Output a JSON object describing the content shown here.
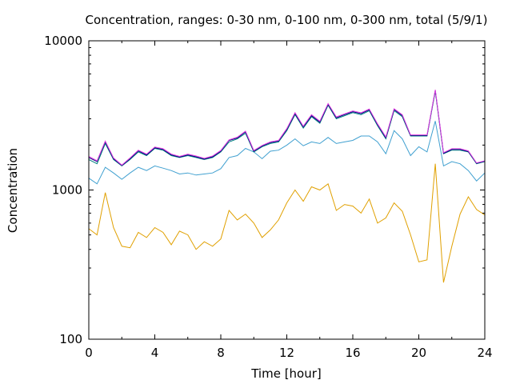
{
  "chart_data": {
    "type": "line",
    "title": "Concentration, ranges: 0-30 nm, 0-100 nm, 0-300 nm, total (5/9/1)",
    "xlabel": "Time [hour]",
    "ylabel": "Concentration",
    "xlim": [
      0,
      24
    ],
    "ylim": [
      100,
      10000
    ],
    "yscale": "log",
    "x_ticks": [
      "0",
      "4",
      "8",
      "12",
      "16",
      "20",
      "24"
    ],
    "y_ticks": [
      "100",
      "1000",
      "10000"
    ],
    "x_tick_values": [
      0,
      4,
      8,
      12,
      16,
      20,
      24
    ],
    "y_tick_values": [
      100,
      1000,
      10000
    ],
    "grid": false,
    "x": [
      0,
      0.5,
      1,
      1.5,
      2,
      2.5,
      3,
      3.5,
      4,
      4.5,
      5,
      5.5,
      6,
      6.5,
      7,
      7.5,
      8,
      8.5,
      9,
      9.5,
      10,
      10.5,
      11,
      11.5,
      12,
      12.5,
      13,
      13.5,
      14,
      14.5,
      15,
      15.5,
      16,
      16.5,
      17,
      17.5,
      18,
      18.5,
      19,
      19.5,
      20,
      20.5,
      21,
      21.5,
      22,
      22.5,
      23,
      23.5,
      24
    ],
    "series": [
      {
        "color": "#e0a000",
        "values": [
          550,
          500,
          960,
          560,
          420,
          410,
          520,
          480,
          560,
          520,
          430,
          530,
          500,
          400,
          450,
          420,
          470,
          730,
          630,
          690,
          600,
          480,
          540,
          630,
          820,
          1000,
          840,
          1050,
          1000,
          1100,
          730,
          800,
          780,
          700,
          870,
          600,
          650,
          820,
          720,
          500,
          330,
          340,
          1500,
          240,
          420,
          690,
          900,
          740,
          680
        ]
      },
      {
        "color": "#40a0d0",
        "values": [
          1200,
          1100,
          1420,
          1300,
          1180,
          1300,
          1420,
          1350,
          1450,
          1400,
          1350,
          1280,
          1300,
          1260,
          1280,
          1300,
          1390,
          1650,
          1700,
          1900,
          1800,
          1620,
          1820,
          1850,
          2000,
          2200,
          1980,
          2100,
          2050,
          2250,
          2050,
          2100,
          2150,
          2300,
          2300,
          2100,
          1750,
          2500,
          2200,
          1700,
          1950,
          1800,
          2900,
          1450,
          1550,
          1500,
          1350,
          1150,
          1300
        ]
      },
      {
        "color": "#008080",
        "values": [
          1600,
          1500,
          2050,
          1600,
          1450,
          1600,
          1800,
          1700,
          1900,
          1850,
          1700,
          1650,
          1700,
          1650,
          1600,
          1650,
          1800,
          2100,
          2200,
          2400,
          1800,
          1950,
          2050,
          2100,
          2500,
          3200,
          2600,
          3100,
          2800,
          3700,
          3000,
          3150,
          3300,
          3200,
          3400,
          2700,
          2200,
          3400,
          3100,
          2300,
          2300,
          2300,
          4600,
          1750,
          1850,
          1850,
          1800,
          1500,
          1550
        ]
      },
      {
        "color": "#000080",
        "values": [
          1650,
          1550,
          2100,
          1620,
          1460,
          1620,
          1830,
          1720,
          1920,
          1870,
          1720,
          1660,
          1720,
          1670,
          1610,
          1670,
          1820,
          2150,
          2230,
          2450,
          1820,
          1970,
          2080,
          2130,
          2550,
          3250,
          2650,
          3150,
          2850,
          3750,
          3050,
          3200,
          3350,
          3250,
          3450,
          2750,
          2240,
          3460,
          3150,
          2320,
          2320,
          2320,
          4650,
          1760,
          1870,
          1870,
          1810,
          1510,
          1560
        ]
      },
      {
        "color": "#e040e0",
        "values": [
          1680,
          1570,
          2130,
          1640,
          1470,
          1640,
          1850,
          1740,
          1940,
          1890,
          1740,
          1680,
          1740,
          1690,
          1630,
          1690,
          1840,
          2170,
          2260,
          2480,
          1840,
          1990,
          2100,
          2150,
          2580,
          3300,
          2680,
          3200,
          2890,
          3800,
          3090,
          3240,
          3390,
          3290,
          3490,
          2780,
          2270,
          3500,
          3190,
          2340,
          2340,
          2340,
          4700,
          1780,
          1890,
          1890,
          1830,
          1520,
          1570
        ]
      }
    ]
  }
}
